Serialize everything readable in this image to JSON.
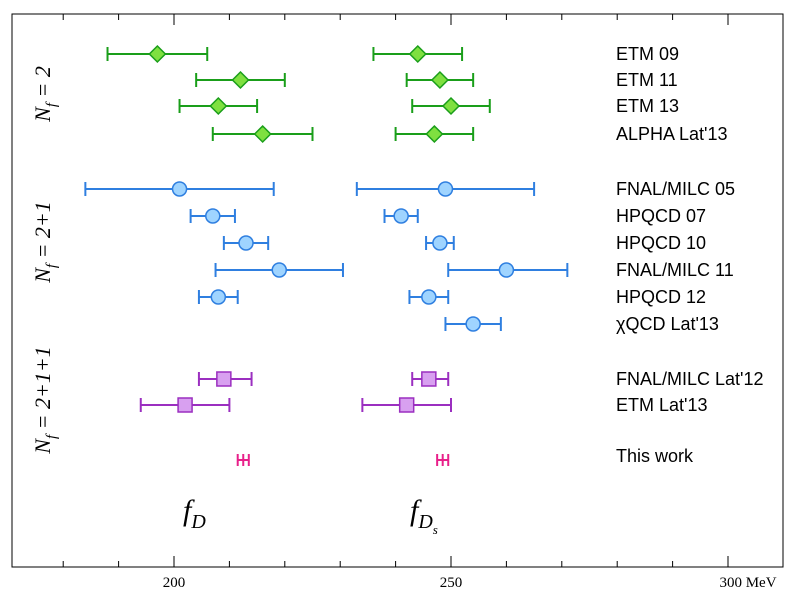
{
  "chart_data": {
    "type": "scatter",
    "subtype": "horizontal-errorbar",
    "x_unit_label": "MeV",
    "xlim": [
      175,
      310
    ],
    "x_ticks": [
      200,
      250,
      300
    ],
    "x_tick_labels": [
      "200",
      "250",
      "300 MeV"
    ],
    "grid": false,
    "series_labels": {
      "fD": {
        "main": "f",
        "sub": "D",
        "subsub": ""
      },
      "fDs": {
        "main": "f",
        "sub": "D",
        "subsub": "s"
      }
    },
    "groups": [
      {
        "label": {
          "prefix": "N",
          "sub": "f",
          "rest": " = 2"
        }
      },
      {
        "label": {
          "prefix": "N",
          "sub": "f",
          "rest": " = 2+1"
        }
      },
      {
        "label": {
          "prefix": "N",
          "sub": "f",
          "rest": " = 2+1+1"
        }
      }
    ],
    "rows": [
      {
        "label": "ETM 09",
        "group": 0,
        "color": "#1a9e1a",
        "fill": "#7fe040",
        "marker": "diamond",
        "fD": {
          "value": 197,
          "low": 188,
          "high": 206
        },
        "fDs": {
          "value": 244,
          "low": 236,
          "high": 252
        }
      },
      {
        "label": "ETM 11",
        "group": 0,
        "color": "#1a9e1a",
        "fill": "#7fe040",
        "marker": "diamond",
        "fD": {
          "value": 212,
          "low": 204,
          "high": 220
        },
        "fDs": {
          "value": 248,
          "low": 242,
          "high": 254
        }
      },
      {
        "label": "ETM 13",
        "group": 0,
        "color": "#1a9e1a",
        "fill": "#7fe040",
        "marker": "diamond",
        "fD": {
          "value": 208,
          "low": 201,
          "high": 215
        },
        "fDs": {
          "value": 250,
          "low": 243,
          "high": 257
        }
      },
      {
        "label": "ALPHA Lat'13",
        "group": 0,
        "color": "#1a9e1a",
        "fill": "#7fe040",
        "marker": "diamond",
        "fD": {
          "value": 216,
          "low": 207,
          "high": 225
        },
        "fDs": {
          "value": 247,
          "low": 240,
          "high": 254
        }
      },
      {
        "label": "FNAL/MILC 05",
        "group": 1,
        "color": "#2f7fe0",
        "fill": "#9fd4ff",
        "marker": "circle",
        "fD": {
          "value": 201,
          "low": 184,
          "high": 218
        },
        "fDs": {
          "value": 249,
          "low": 233,
          "high": 265
        }
      },
      {
        "label": "HPQCD 07",
        "group": 1,
        "color": "#2f7fe0",
        "fill": "#9fd4ff",
        "marker": "circle",
        "fD": {
          "value": 207,
          "low": 203,
          "high": 211
        },
        "fDs": {
          "value": 241,
          "low": 238,
          "high": 244
        }
      },
      {
        "label": "HPQCD 10",
        "group": 1,
        "color": "#2f7fe0",
        "fill": "#9fd4ff",
        "marker": "circle",
        "fD": {
          "value": 213,
          "low": 209,
          "high": 217
        },
        "fDs": {
          "value": 248,
          "low": 245.5,
          "high": 250.5
        }
      },
      {
        "label": "FNAL/MILC 11",
        "group": 1,
        "color": "#2f7fe0",
        "fill": "#9fd4ff",
        "marker": "circle",
        "fD": {
          "value": 219,
          "low": 207.5,
          "high": 230.5
        },
        "fDs": {
          "value": 260,
          "low": 249.5,
          "high": 271
        }
      },
      {
        "label": "HPQCD 12",
        "group": 1,
        "color": "#2f7fe0",
        "fill": "#9fd4ff",
        "marker": "circle",
        "fD": {
          "value": 208,
          "low": 204.5,
          "high": 211.5
        },
        "fDs": {
          "value": 246,
          "low": 242.5,
          "high": 249.5
        }
      },
      {
        "label": "χQCD Lat'13",
        "group": 1,
        "color": "#2f7fe0",
        "fill": "#9fd4ff",
        "marker": "circle",
        "fD": null,
        "fDs": {
          "value": 254,
          "low": 249,
          "high": 259
        }
      },
      {
        "label": "FNAL/MILC Lat'12",
        "group": 2,
        "color": "#9b2fc0",
        "fill": "#d8a0f0",
        "marker": "square",
        "fD": {
          "value": 209,
          "low": 204.5,
          "high": 214
        },
        "fDs": {
          "value": 246,
          "low": 243,
          "high": 249.5
        }
      },
      {
        "label": "ETM Lat'13",
        "group": 2,
        "color": "#9b2fc0",
        "fill": "#d8a0f0",
        "marker": "square",
        "fD": {
          "value": 202,
          "low": 194,
          "high": 210
        },
        "fDs": {
          "value": 242,
          "low": 234,
          "high": 250
        }
      },
      {
        "label": "This work",
        "group": 2,
        "color": "#e8208a",
        "fill": "#e8208a",
        "marker": "none",
        "label_color": "#e8208a",
        "fD": {
          "value": 212.5,
          "low": 211.5,
          "high": 213.5
        },
        "fDs": {
          "value": 248.5,
          "low": 247.5,
          "high": 249.5
        }
      }
    ]
  }
}
